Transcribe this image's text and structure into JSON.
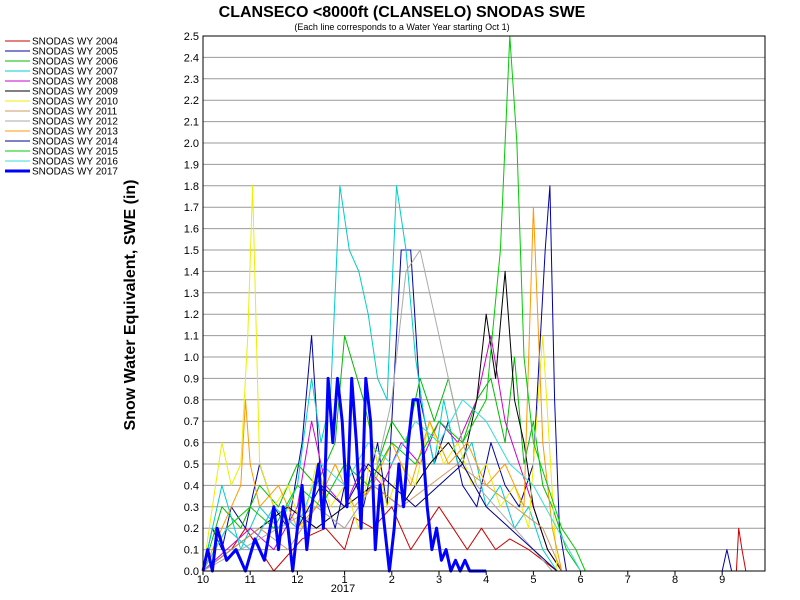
{
  "chart_data": {
    "type": "line",
    "title": "CLANSECO <8000ft (CLANSELO) SNODAS SWE",
    "subtitle": "(Each line corresponds to a Water Year starting Oct 1)",
    "ylabel": "Snow Water Equivalent, SWE (in)",
    "xlabel": "",
    "x_year_label": "2017",
    "ylim": [
      0,
      2.5
    ],
    "xlim": [
      0,
      12
    ],
    "grid": true,
    "legend_position": "left",
    "yticks": [
      "0.0",
      "0.1",
      "0.2",
      "0.3",
      "0.4",
      "0.5",
      "0.6",
      "0.7",
      "0.8",
      "0.9",
      "1.0",
      "1.1",
      "1.2",
      "1.3",
      "1.4",
      "1.5",
      "1.6",
      "1.7",
      "1.8",
      "1.9",
      "2.0",
      "2.1",
      "2.2",
      "2.3",
      "2.4",
      "2.5"
    ],
    "xticks": [
      {
        "x": 0,
        "label": "10"
      },
      {
        "x": 1,
        "label": "11"
      },
      {
        "x": 2,
        "label": "12"
      },
      {
        "x": 3,
        "label": "1"
      },
      {
        "x": 4,
        "label": "2"
      },
      {
        "x": 5,
        "label": "3"
      },
      {
        "x": 6,
        "label": "4"
      },
      {
        "x": 7,
        "label": "5"
      },
      {
        "x": 8,
        "label": "6"
      },
      {
        "x": 9,
        "label": "7"
      },
      {
        "x": 10,
        "label": "8"
      },
      {
        "x": 11,
        "label": "9"
      }
    ],
    "series": [
      {
        "name": "SNODAS WY 2004",
        "color": "#cc0000",
        "width": 1,
        "x": [
          0,
          0.6,
          0.9,
          1.5,
          2.1,
          2.6,
          3.0,
          3.2,
          3.6,
          4.0,
          4.4,
          4.7,
          5.0,
          5.3,
          5.6,
          5.9,
          6.2,
          6.5,
          6.9,
          7.2,
          7.5,
          11.3,
          11.35,
          11.42,
          11.5
        ],
        "y": [
          0,
          0.1,
          0.2,
          0,
          0.15,
          0.2,
          0.1,
          0.25,
          0.2,
          0.3,
          0.1,
          0.2,
          0.3,
          0.2,
          0.1,
          0.2,
          0.1,
          0.15,
          0.1,
          0.05,
          0,
          0,
          0.2,
          0.1,
          0
        ]
      },
      {
        "name": "SNODAS WY 2005",
        "color": "#0000aa",
        "width": 1,
        "x": [
          0,
          0.2,
          0.4,
          0.6,
          0.9,
          1.2,
          1.5,
          1.8,
          2.1,
          2.3,
          2.5,
          2.8,
          3.1,
          3.4,
          3.7,
          3.9,
          4.2,
          4.4,
          4.6,
          4.9,
          5.2,
          5.5,
          5.8,
          6.1,
          6.4,
          6.7,
          7.0,
          7.25,
          7.35,
          7.45,
          7.55,
          7.7,
          11.0,
          11.1,
          11.2
        ],
        "y": [
          0,
          0.2,
          0.1,
          0.3,
          0.2,
          0.5,
          0.3,
          0.2,
          0.6,
          1.1,
          0.4,
          0.2,
          0.5,
          0.3,
          0.6,
          0.3,
          1.5,
          1.5,
          0.8,
          0.5,
          0.7,
          0.4,
          0.3,
          0.6,
          0.4,
          0.3,
          0.5,
          1.5,
          1.8,
          0.8,
          0.2,
          0,
          0,
          0.1,
          0
        ]
      },
      {
        "name": "SNODAS WY 2006",
        "color": "#00bb00",
        "width": 1,
        "x": [
          0,
          0.4,
          0.8,
          1.2,
          1.6,
          2.0,
          2.4,
          2.8,
          3.0,
          3.4,
          3.7,
          4.0,
          4.3,
          4.6,
          4.9,
          5.2,
          5.5,
          5.8,
          6.1,
          6.4,
          6.6,
          6.8,
          7.0,
          7.2,
          7.4,
          7.7,
          8.0
        ],
        "y": [
          0,
          0.3,
          0.2,
          0.4,
          0.3,
          0.5,
          0.4,
          0.6,
          1.1,
          0.8,
          0.5,
          0.7,
          0.6,
          0.9,
          0.7,
          0.9,
          0.6,
          0.8,
          0.9,
          0.6,
          1.0,
          0.5,
          0.7,
          0.4,
          0.3,
          0.1,
          0
        ]
      },
      {
        "name": "SNODAS WY 2007",
        "color": "#00cccc",
        "width": 1,
        "x": [
          0,
          0.4,
          0.8,
          1.2,
          1.6,
          2.0,
          2.3,
          2.5,
          2.7,
          2.9,
          3.1,
          3.3,
          3.5,
          3.7,
          3.9,
          4.1,
          4.3,
          4.5,
          4.7,
          4.9,
          5.1,
          5.4,
          5.7,
          6.0,
          6.3,
          6.6,
          6.9,
          7.2,
          7.5
        ],
        "y": [
          0,
          0.4,
          0.1,
          0.3,
          0.2,
          0.4,
          0.9,
          0.6,
          0.8,
          1.8,
          1.5,
          1.4,
          1.2,
          0.9,
          0.8,
          1.8,
          1.5,
          1.0,
          0.7,
          0.5,
          0.8,
          0.5,
          0.6,
          0.3,
          0.4,
          0.2,
          0.3,
          0.1,
          0
        ]
      },
      {
        "name": "SNODAS WY 2008",
        "color": "#cc00cc",
        "width": 1,
        "x": [
          0,
          0.5,
          1.0,
          1.5,
          2.0,
          2.3,
          2.6,
          3.0,
          3.4,
          3.8,
          4.2,
          4.6,
          5.0,
          5.4,
          5.8,
          6.1,
          6.4,
          6.7,
          7.0,
          7.3,
          7.6
        ],
        "y": [
          0,
          0.1,
          0.2,
          0.1,
          0.3,
          0.7,
          0.4,
          0.3,
          0.5,
          0.4,
          0.6,
          0.5,
          0.7,
          0.6,
          0.8,
          1.1,
          0.7,
          0.5,
          0.3,
          0.1,
          0
        ]
      },
      {
        "name": "SNODAS WY 2009",
        "color": "#000000",
        "width": 1,
        "x": [
          0,
          0.6,
          1.2,
          1.8,
          2.4,
          3.0,
          3.6,
          4.2,
          4.8,
          5.2,
          5.5,
          5.8,
          6.0,
          6.2,
          6.4,
          6.6,
          6.8,
          7.0,
          7.3,
          7.6
        ],
        "y": [
          0,
          0.1,
          0.2,
          0.3,
          0.2,
          0.3,
          0.4,
          0.3,
          0.5,
          0.6,
          0.5,
          0.8,
          1.2,
          0.9,
          1.4,
          0.8,
          0.6,
          0.3,
          0.1,
          0
        ]
      },
      {
        "name": "SNODAS WY 2010",
        "color": "#eeee00",
        "width": 1,
        "x": [
          0,
          0.2,
          0.4,
          0.6,
          0.8,
          0.95,
          1.05,
          1.2,
          1.5,
          1.8,
          2.1,
          2.4,
          2.7,
          3.0,
          3.3,
          3.6,
          3.9,
          4.2,
          4.5,
          4.8,
          5.1,
          5.4,
          5.7,
          6.0,
          6.3,
          6.6,
          6.9,
          7.2,
          7.5
        ],
        "y": [
          0,
          0.3,
          0.6,
          0.4,
          0.5,
          1.1,
          1.8,
          0.5,
          0.3,
          0.4,
          0.2,
          0.5,
          0.3,
          0.4,
          0.2,
          0.6,
          0.3,
          0.5,
          0.4,
          0.7,
          0.5,
          0.6,
          0.4,
          0.5,
          0.3,
          0.4,
          0.2,
          1.1,
          0
        ]
      },
      {
        "name": "SNODAS WY 2011",
        "color": "#cc9966",
        "width": 1,
        "x": [
          0,
          0.6,
          1.2,
          1.8,
          2.4,
          3.0,
          3.6,
          4.2,
          4.8,
          5.4,
          6.0,
          6.6,
          7.2,
          7.6
        ],
        "y": [
          0,
          0.1,
          0.2,
          0.1,
          0.3,
          0.2,
          0.4,
          0.3,
          0.4,
          0.5,
          0.4,
          0.3,
          0.2,
          0
        ]
      },
      {
        "name": "SNODAS WY 2012",
        "color": "#aaaaaa",
        "width": 1,
        "x": [
          0,
          0.8,
          1.6,
          2.4,
          3.0,
          3.6,
          4.0,
          4.3,
          4.6,
          4.9,
          5.2,
          5.5,
          5.8,
          6.2,
          6.6,
          7.0,
          7.4
        ],
        "y": [
          0,
          0.1,
          0.2,
          0.3,
          0.2,
          0.4,
          0.8,
          1.4,
          1.5,
          1.2,
          0.9,
          0.6,
          0.4,
          0.3,
          0.2,
          0.1,
          0
        ]
      },
      {
        "name": "SNODAS WY 2013",
        "color": "#ff9900",
        "width": 1,
        "x": [
          0,
          0.4,
          0.8,
          0.9,
          1.0,
          1.2,
          1.6,
          2.0,
          2.4,
          2.8,
          3.2,
          3.6,
          4.0,
          4.4,
          4.8,
          5.2,
          5.6,
          6.0,
          6.4,
          6.8,
          7.0,
          7.2,
          7.4,
          7.6
        ],
        "y": [
          0,
          0.2,
          0.4,
          0.8,
          0.5,
          0.3,
          0.4,
          0.2,
          0.3,
          0.5,
          0.3,
          0.4,
          0.6,
          0.4,
          0.7,
          0.5,
          0.6,
          0.4,
          0.5,
          0.3,
          1.7,
          0.6,
          0.2,
          0
        ]
      },
      {
        "name": "SNODAS WY 2014",
        "color": "#000088",
        "width": 1,
        "x": [
          0,
          0.5,
          1.0,
          1.5,
          2.0,
          2.5,
          3.0,
          3.5,
          4.0,
          4.5,
          5.0,
          5.5,
          6.0,
          6.5,
          7.0,
          7.5
        ],
        "y": [
          0,
          0.2,
          0.1,
          0.3,
          0.2,
          0.4,
          0.3,
          0.5,
          0.4,
          0.3,
          0.4,
          0.5,
          0.3,
          0.2,
          0.1,
          0
        ]
      },
      {
        "name": "SNODAS WY 2015",
        "color": "#00cc00",
        "width": 1,
        "x": [
          0,
          0.5,
          1.0,
          1.5,
          2.0,
          2.5,
          3.0,
          3.5,
          4.0,
          4.5,
          5.0,
          5.5,
          6.0,
          6.3,
          6.5,
          6.65,
          6.8,
          7.0,
          7.3,
          7.6,
          7.9,
          8.1
        ],
        "y": [
          0,
          0.2,
          0.3,
          0.2,
          0.4,
          0.3,
          0.5,
          0.4,
          0.6,
          0.5,
          0.7,
          0.6,
          0.8,
          1.5,
          2.5,
          2.0,
          1.0,
          0.6,
          0.4,
          0.2,
          0.1,
          0
        ]
      },
      {
        "name": "SNODAS WY 2016",
        "color": "#33dddd",
        "width": 1,
        "x": [
          0,
          0.5,
          1.0,
          1.5,
          2.0,
          2.5,
          3.0,
          3.5,
          4.0,
          4.5,
          5.0,
          5.5,
          6.0,
          6.5,
          7.0,
          7.5,
          8.0
        ],
        "y": [
          0,
          0.2,
          0.1,
          0.3,
          0.2,
          0.5,
          0.4,
          0.6,
          0.5,
          0.7,
          0.6,
          0.8,
          0.7,
          0.5,
          0.4,
          0.2,
          0
        ]
      },
      {
        "name": "SNODAS WY 2017",
        "color": "#0000ff",
        "width": 3,
        "x": [
          0,
          0.1,
          0.2,
          0.3,
          0.5,
          0.7,
          0.9,
          1.1,
          1.3,
          1.5,
          1.6,
          1.7,
          1.8,
          1.9,
          2.0,
          2.1,
          2.2,
          2.3,
          2.45,
          2.55,
          2.65,
          2.75,
          2.85,
          2.95,
          3.05,
          3.15,
          3.25,
          3.35,
          3.45,
          3.55,
          3.65,
          3.75,
          3.85,
          3.95,
          4.05,
          4.15,
          4.25,
          4.35,
          4.45,
          4.55,
          4.65,
          4.75,
          4.85,
          4.95,
          5.05,
          5.15,
          5.25,
          5.35,
          5.45,
          5.55,
          5.65,
          5.75,
          5.85,
          6.0
        ],
        "y": [
          0,
          0.1,
          0,
          0.2,
          0.05,
          0.1,
          0,
          0.15,
          0.05,
          0.3,
          0.1,
          0.3,
          0.2,
          0,
          0.2,
          0.4,
          0.1,
          0.3,
          0.5,
          0.2,
          0.9,
          0.6,
          0.9,
          0.7,
          0.3,
          0.9,
          0.6,
          0.2,
          0.9,
          0.7,
          0.1,
          0.4,
          0.2,
          0,
          0.2,
          0.5,
          0.3,
          0.6,
          0.8,
          0.8,
          0.6,
          0.3,
          0.1,
          0.2,
          0.05,
          0.1,
          0,
          0.05,
          0,
          0.05,
          0,
          0,
          0,
          0
        ]
      }
    ]
  }
}
